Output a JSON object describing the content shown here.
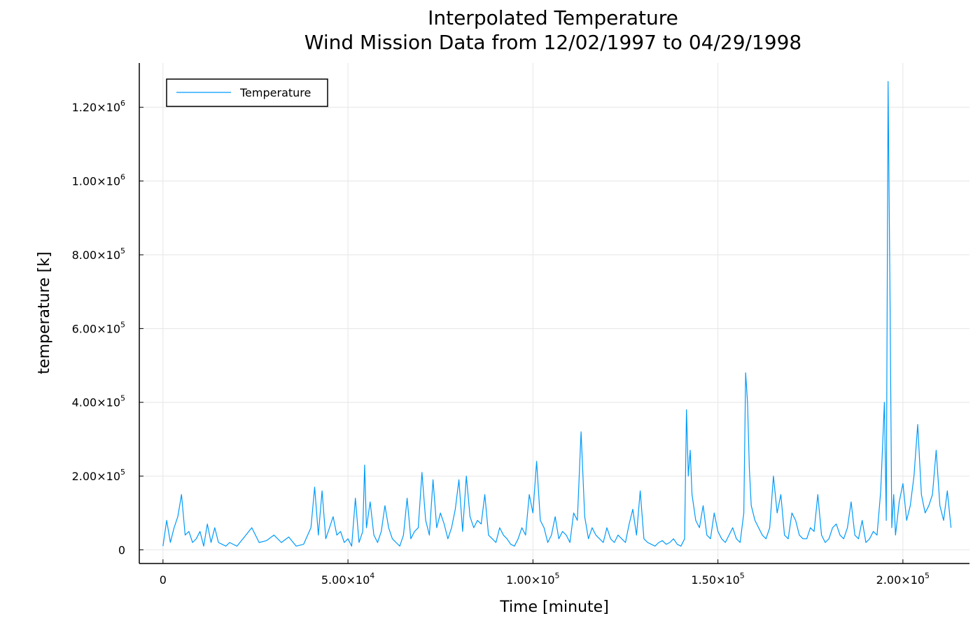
{
  "chart_data": {
    "type": "line",
    "title": "Interpolated Temperature",
    "subtitle": "Wind Mission Data from 12/02/1997 to 04/29/1998",
    "xlabel": "Time [minute]",
    "ylabel": "temperature [k]",
    "xlim": [
      -6400,
      218000
    ],
    "ylim": [
      -37000,
      1320000
    ],
    "grid": true,
    "legend_position": "top-left",
    "x_ticks": [
      {
        "value": 0,
        "mantissa": "0",
        "exp": ""
      },
      {
        "value": 50000,
        "mantissa": "5.00×10",
        "exp": "4"
      },
      {
        "value": 100000,
        "mantissa": "1.00×10",
        "exp": "5"
      },
      {
        "value": 150000,
        "mantissa": "1.50×10",
        "exp": "5"
      },
      {
        "value": 200000,
        "mantissa": "2.00×10",
        "exp": "5"
      }
    ],
    "y_ticks": [
      {
        "value": 0,
        "mantissa": "0",
        "exp": ""
      },
      {
        "value": 200000,
        "mantissa": "2.00×10",
        "exp": "5"
      },
      {
        "value": 400000,
        "mantissa": "4.00×10",
        "exp": "5"
      },
      {
        "value": 600000,
        "mantissa": "6.00×10",
        "exp": "5"
      },
      {
        "value": 800000,
        "mantissa": "8.00×10",
        "exp": "5"
      },
      {
        "value": 1000000,
        "mantissa": "1.00×10",
        "exp": "6"
      },
      {
        "value": 1200000,
        "mantissa": "1.20×10",
        "exp": "6"
      }
    ],
    "series": [
      {
        "name": "Temperature",
        "color": "#009AFA",
        "x": [
          0,
          1000,
          2000,
          3000,
          4000,
          5000,
          6000,
          7000,
          8000,
          9000,
          10000,
          11000,
          12000,
          13000,
          14000,
          15000,
          16000,
          17000,
          18000,
          19000,
          20000,
          22000,
          24000,
          26000,
          28000,
          30000,
          32000,
          34000,
          36000,
          38000,
          40000,
          41000,
          42000,
          43000,
          44000,
          45000,
          46000,
          47000,
          48000,
          49000,
          50000,
          51000,
          52000,
          53000,
          54000,
          54500,
          55000,
          56000,
          57000,
          58000,
          59000,
          60000,
          61000,
          62000,
          63000,
          64000,
          65000,
          66000,
          67000,
          68000,
          69000,
          70000,
          71000,
          72000,
          73000,
          74000,
          75000,
          76000,
          77000,
          78000,
          79000,
          80000,
          81000,
          82000,
          83000,
          84000,
          85000,
          86000,
          87000,
          88000,
          89000,
          90000,
          91000,
          92000,
          93000,
          94000,
          95000,
          96000,
          97000,
          98000,
          99000,
          100000,
          101000,
          102000,
          103000,
          104000,
          105000,
          106000,
          107000,
          108000,
          109000,
          110000,
          111000,
          112000,
          113000,
          114000,
          115000,
          116000,
          117000,
          118000,
          119000,
          120000,
          121000,
          122000,
          123000,
          124000,
          125000,
          126000,
          127000,
          128000,
          129000,
          130000,
          131000,
          132000,
          133000,
          134000,
          135000,
          136000,
          137000,
          138000,
          139000,
          140000,
          141000,
          141500,
          142000,
          142500,
          143000,
          144000,
          145000,
          146000,
          147000,
          148000,
          149000,
          150000,
          151000,
          152000,
          153000,
          154000,
          155000,
          156000,
          157000,
          157500,
          158000,
          158500,
          159000,
          160000,
          161000,
          162000,
          163000,
          164000,
          165000,
          166000,
          167000,
          168000,
          169000,
          170000,
          171000,
          172000,
          173000,
          174000,
          175000,
          176000,
          177000,
          178000,
          179000,
          180000,
          181000,
          182000,
          183000,
          184000,
          185000,
          186000,
          187000,
          188000,
          189000,
          190000,
          191000,
          192000,
          193000,
          194000,
          195000,
          195500,
          196000,
          196500,
          197000,
          197500,
          198000,
          199000,
          200000,
          201000,
          202000,
          203000,
          204000,
          205000,
          206000,
          207000,
          208000,
          209000,
          210000,
          211000,
          212000,
          213000
        ],
        "y": [
          10000,
          80000,
          20000,
          60000,
          90000,
          150000,
          40000,
          50000,
          20000,
          30000,
          50000,
          10000,
          70000,
          20000,
          60000,
          20000,
          15000,
          10000,
          20000,
          15000,
          10000,
          35000,
          60000,
          20000,
          25000,
          40000,
          20000,
          35000,
          10000,
          15000,
          60000,
          170000,
          40000,
          160000,
          30000,
          60000,
          90000,
          40000,
          50000,
          20000,
          30000,
          10000,
          140000,
          20000,
          50000,
          230000,
          60000,
          130000,
          40000,
          20000,
          50000,
          120000,
          60000,
          30000,
          20000,
          10000,
          40000,
          140000,
          30000,
          50000,
          60000,
          210000,
          80000,
          40000,
          190000,
          60000,
          100000,
          70000,
          30000,
          60000,
          110000,
          190000,
          50000,
          200000,
          90000,
          60000,
          80000,
          70000,
          150000,
          40000,
          30000,
          20000,
          60000,
          40000,
          30000,
          15000,
          10000,
          30000,
          60000,
          40000,
          150000,
          100000,
          240000,
          80000,
          60000,
          20000,
          40000,
          90000,
          30000,
          50000,
          40000,
          20000,
          100000,
          80000,
          320000,
          90000,
          30000,
          60000,
          40000,
          30000,
          20000,
          60000,
          30000,
          20000,
          40000,
          30000,
          20000,
          70000,
          110000,
          40000,
          160000,
          30000,
          20000,
          15000,
          10000,
          20000,
          25000,
          15000,
          20000,
          30000,
          15000,
          10000,
          30000,
          380000,
          200000,
          270000,
          150000,
          80000,
          60000,
          120000,
          40000,
          30000,
          100000,
          50000,
          30000,
          20000,
          40000,
          60000,
          30000,
          20000,
          100000,
          480000,
          400000,
          220000,
          120000,
          80000,
          60000,
          40000,
          30000,
          60000,
          200000,
          100000,
          150000,
          40000,
          30000,
          100000,
          80000,
          40000,
          30000,
          30000,
          60000,
          50000,
          150000,
          40000,
          20000,
          30000,
          60000,
          70000,
          40000,
          30000,
          60000,
          130000,
          40000,
          30000,
          80000,
          20000,
          30000,
          50000,
          40000,
          160000,
          400000,
          80000,
          1270000,
          700000,
          60000,
          150000,
          40000,
          130000,
          180000,
          80000,
          120000,
          200000,
          340000,
          150000,
          100000,
          120000,
          150000,
          270000,
          120000,
          80000,
          160000,
          60000
        ]
      }
    ]
  }
}
